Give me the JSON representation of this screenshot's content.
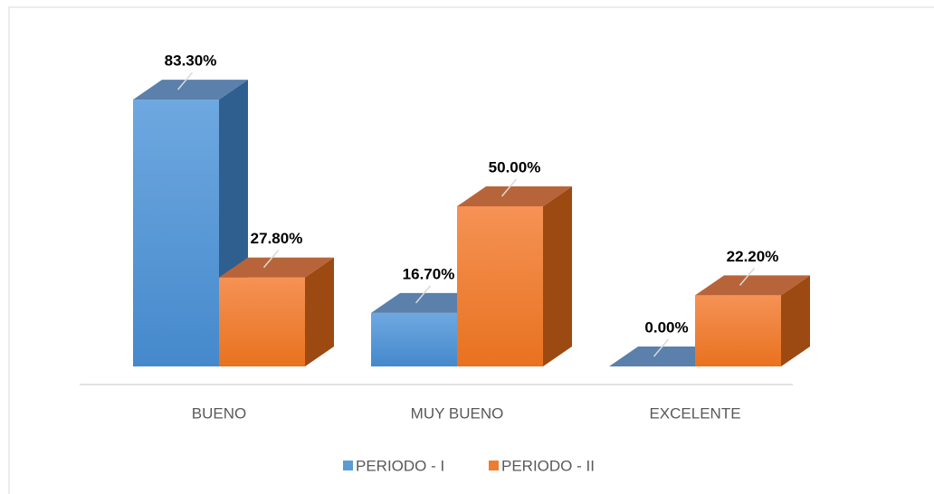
{
  "chart_data": {
    "type": "bar",
    "categories": [
      "BUENO",
      "MUY BUENO",
      "EXCELENTE"
    ],
    "series": [
      {
        "name": "PERIODO - I",
        "color": "#5b9bd5",
        "values": [
          83.3,
          16.7,
          0
        ],
        "value_labels": [
          "83.30%",
          "16.70%",
          "0.00%"
        ]
      },
      {
        "name": "PERIODO - II",
        "color": "#ed7d31",
        "values": [
          27.8,
          50,
          22.2
        ],
        "value_labels": [
          "27.80%",
          "50.00%",
          "22.20%"
        ]
      }
    ],
    "legend": "bottom"
  }
}
